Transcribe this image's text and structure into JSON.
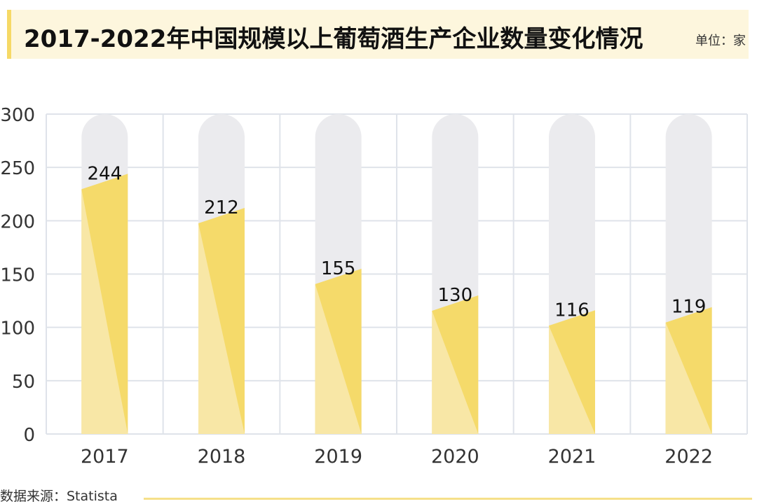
{
  "header": {
    "title": "2017-2022年中国规模以上葡萄酒生产企业数量变化情况",
    "unit": "单位：家"
  },
  "footer": {
    "source": "数据来源：Statista"
  },
  "colors": {
    "bar_fill": "#f5da6a",
    "bar_fill_light": "#f8e7a6",
    "track": "#ebebee",
    "grid": "#dfe3ea",
    "title_bg": "#fdf6dd",
    "accent": "#f6d966"
  },
  "chart_data": {
    "type": "bar",
    "title": "2017-2022年中国规模以上葡萄酒生产企业数量变化情况",
    "xlabel": "",
    "ylabel": "",
    "categories": [
      "2017",
      "2018",
      "2019",
      "2020",
      "2021",
      "2022"
    ],
    "values": [
      244,
      212,
      155,
      130,
      116,
      119
    ],
    "data_labels": [
      "244",
      "212",
      "155",
      "130",
      "116",
      "119"
    ],
    "ylim": [
      0,
      300
    ],
    "yticks": [
      0,
      50,
      100,
      150,
      200,
      250,
      300
    ],
    "ytick_labels": [
      "0",
      "50",
      "100",
      "150",
      "200",
      "250",
      "300"
    ],
    "grid": true,
    "legend": "none"
  }
}
